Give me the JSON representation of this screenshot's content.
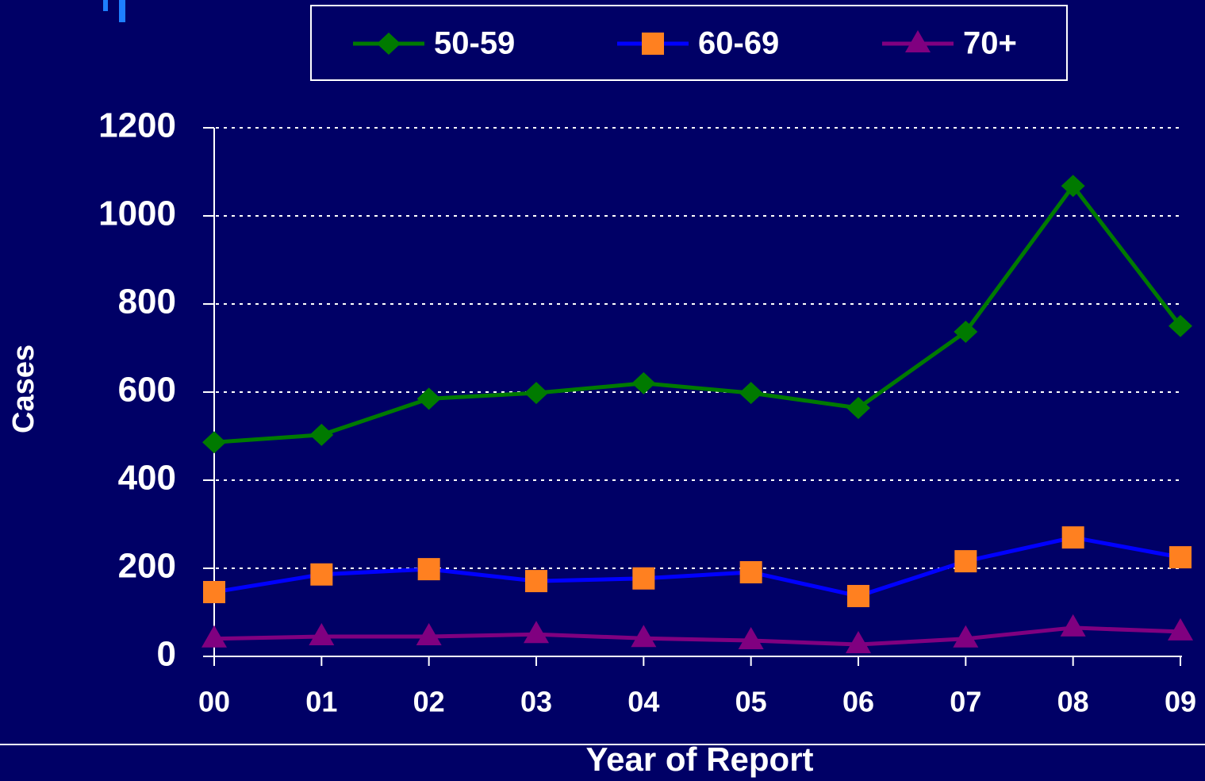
{
  "chart_data": {
    "type": "line",
    "x_label": "Year of Report",
    "y_label": "Cases",
    "categories": [
      "00",
      "01",
      "02",
      "03",
      "04",
      "05",
      "06",
      "07",
      "08",
      "09"
    ],
    "series": [
      {
        "name": "50-59",
        "color": "#007a00",
        "marker_color": "#007a00",
        "marker": "diamond",
        "values": [
          486,
          503,
          585,
          598,
          620,
          598,
          564,
          737,
          1068,
          750
        ]
      },
      {
        "name": "60-69",
        "color": "#0000ff",
        "marker_color": "#ff8020",
        "marker": "square",
        "values": [
          146,
          186,
          198,
          171,
          177,
          191,
          137,
          216,
          270,
          225
        ]
      },
      {
        "name": "70+",
        "color": "#800080",
        "marker_color": "#800080",
        "marker": "triangle",
        "values": [
          40,
          45,
          45,
          50,
          41,
          36,
          27,
          40,
          65,
          56
        ]
      }
    ],
    "ylim": [
      0,
      1200
    ],
    "yticks": [
      0,
      200,
      400,
      600,
      800,
      1000,
      1200
    ],
    "grid": true
  }
}
